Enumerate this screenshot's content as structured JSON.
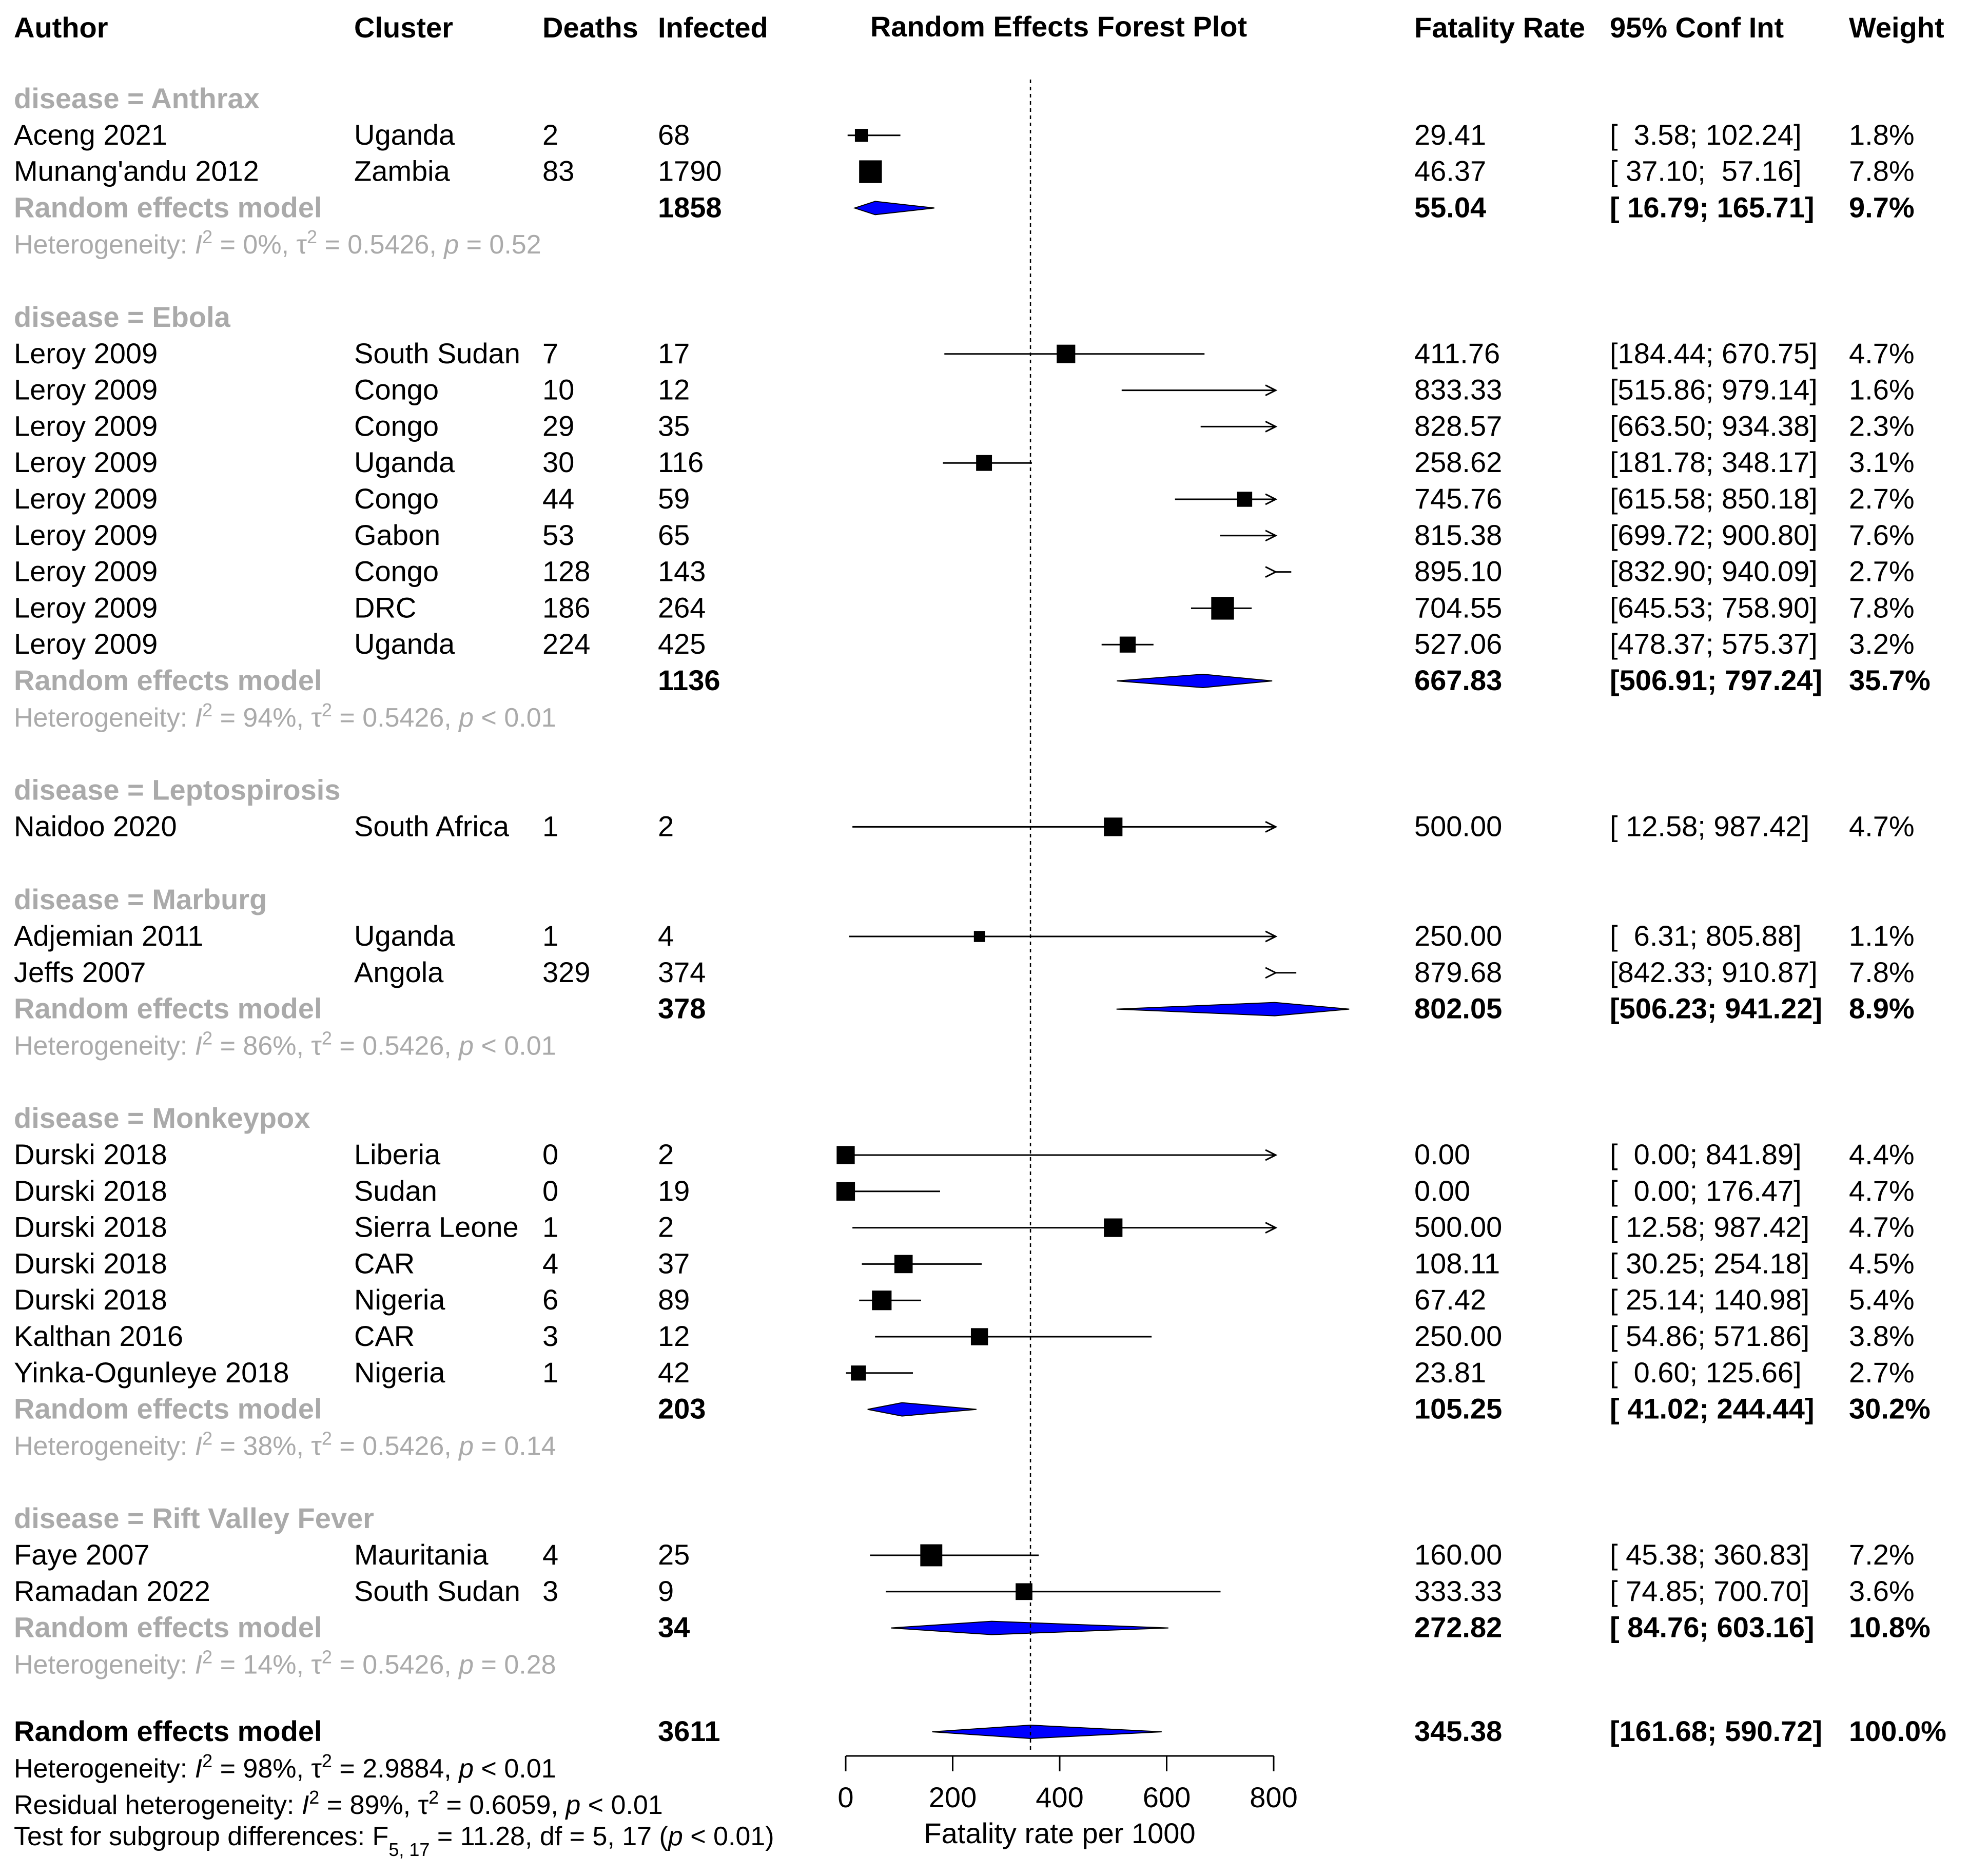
{
  "headers": {
    "author": "Author",
    "cluster": "Cluster",
    "deaths": "Deaths",
    "infected": "Infected",
    "plot_title": "Random Effects Forest Plot",
    "rate": "Fatality Rate",
    "ci": "95% Conf Int",
    "weight": "Weight"
  },
  "chart_data": {
    "type": "forest",
    "title": "Random Effects Forest Plot",
    "xlabel": "Fatality rate per 1000",
    "xlim": [
      0,
      800
    ],
    "xticks": [
      "0",
      "200",
      "400",
      "600",
      "800"
    ],
    "reference_line": 345.38,
    "groups": [
      {
        "label": "disease = Anthrax",
        "studies": [
          {
            "author": "Aceng 2021",
            "cluster": "Uganda",
            "deaths": "2",
            "infected": "68",
            "rate": "29.41",
            "ci": "[  3.58; 102.24]",
            "weight": "1.8%",
            "est": 29.41,
            "lo": 3.58,
            "hi": 102.24,
            "w": 1.8
          },
          {
            "author": "Munang'andu 2012",
            "cluster": "Zambia",
            "deaths": "83",
            "infected": "1790",
            "rate": "46.37",
            "ci": "[ 37.10;  57.16]",
            "weight": "7.8%",
            "est": 46.37,
            "lo": 37.1,
            "hi": 57.16,
            "w": 7.8
          }
        ],
        "summary": {
          "label": "Random effects model",
          "infected": "1858",
          "rate": "55.04",
          "ci": "[ 16.79; 165.71]",
          "weight": "9.7%",
          "est": 55.04,
          "lo": 16.79,
          "hi": 165.71
        },
        "heterogeneity": {
          "prefix": "Heterogeneity: ",
          "i2": "0%",
          "tau2": "0.5426",
          "p": "= 0.52"
        }
      },
      {
        "label": "disease = Ebola",
        "studies": [
          {
            "author": "Leroy 2009",
            "cluster": "South Sudan",
            "deaths": "7",
            "infected": "17",
            "rate": "411.76",
            "ci": "[184.44; 670.75]",
            "weight": "4.7%",
            "est": 411.76,
            "lo": 184.44,
            "hi": 670.75,
            "w": 4.7
          },
          {
            "author": "Leroy 2009",
            "cluster": "Congo",
            "deaths": "10",
            "infected": "12",
            "rate": "833.33",
            "ci": "[515.86; 979.14]",
            "weight": "1.6%",
            "est": 833.33,
            "lo": 515.86,
            "hi": 979.14,
            "w": 1.6
          },
          {
            "author": "Leroy 2009",
            "cluster": "Congo",
            "deaths": "29",
            "infected": "35",
            "rate": "828.57",
            "ci": "[663.50; 934.38]",
            "weight": "2.3%",
            "est": 828.57,
            "lo": 663.5,
            "hi": 934.38,
            "w": 2.3
          },
          {
            "author": "Leroy 2009",
            "cluster": "Uganda",
            "deaths": "30",
            "infected": "116",
            "rate": "258.62",
            "ci": "[181.78; 348.17]",
            "weight": "3.1%",
            "est": 258.62,
            "lo": 181.78,
            "hi": 348.17,
            "w": 3.1
          },
          {
            "author": "Leroy 2009",
            "cluster": "Congo",
            "deaths": "44",
            "infected": "59",
            "rate": "745.76",
            "ci": "[615.58; 850.18]",
            "weight": "2.7%",
            "est": 745.76,
            "lo": 615.58,
            "hi": 850.18,
            "w": 2.7
          },
          {
            "author": "Leroy 2009",
            "cluster": "Gabon",
            "deaths": "53",
            "infected": "65",
            "rate": "815.38",
            "ci": "[699.72; 900.80]",
            "weight": "7.6%",
            "est": 815.38,
            "lo": 699.72,
            "hi": 900.8,
            "w": 7.6
          },
          {
            "author": "Leroy 2009",
            "cluster": "Congo",
            "deaths": "128",
            "infected": "143",
            "rate": "895.10",
            "ci": "[832.90; 940.09]",
            "weight": "2.7%",
            "est": 895.1,
            "lo": 832.9,
            "hi": 940.09,
            "w": 2.7
          },
          {
            "author": "Leroy 2009",
            "cluster": "DRC",
            "deaths": "186",
            "infected": "264",
            "rate": "704.55",
            "ci": "[645.53; 758.90]",
            "weight": "7.8%",
            "est": 704.55,
            "lo": 645.53,
            "hi": 758.9,
            "w": 7.8
          },
          {
            "author": "Leroy 2009",
            "cluster": "Uganda",
            "deaths": "224",
            "infected": "425",
            "rate": "527.06",
            "ci": "[478.37; 575.37]",
            "weight": "3.2%",
            "est": 527.06,
            "lo": 478.37,
            "hi": 575.37,
            "w": 3.2
          }
        ],
        "summary": {
          "label": "Random effects model",
          "infected": "1136",
          "rate": "667.83",
          "ci": "[506.91; 797.24]",
          "weight": "35.7%",
          "est": 667.83,
          "lo": 506.91,
          "hi": 797.24
        },
        "heterogeneity": {
          "prefix": "Heterogeneity: ",
          "i2": "94%",
          "tau2": "0.5426",
          "p": "< 0.01"
        }
      },
      {
        "label": "disease = Leptospirosis",
        "studies": [
          {
            "author": "Naidoo 2020",
            "cluster": "South Africa",
            "deaths": "1",
            "infected": "2",
            "rate": "500.00",
            "ci": "[ 12.58; 987.42]",
            "weight": "4.7%",
            "est": 500.0,
            "lo": 12.58,
            "hi": 987.42,
            "w": 4.7
          }
        ],
        "summary": null,
        "heterogeneity": null
      },
      {
        "label": "disease = Marburg",
        "studies": [
          {
            "author": "Adjemian 2011",
            "cluster": "Uganda",
            "deaths": "1",
            "infected": "4",
            "rate": "250.00",
            "ci": "[  6.31; 805.88]",
            "weight": "1.1%",
            "est": 250.0,
            "lo": 6.31,
            "hi": 805.88,
            "w": 1.1
          },
          {
            "author": "Jeffs 2007",
            "cluster": "Angola",
            "deaths": "329",
            "infected": "374",
            "rate": "879.68",
            "ci": "[842.33; 910.87]",
            "weight": "7.8%",
            "est": 879.68,
            "lo": 842.33,
            "hi": 910.87,
            "w": 7.8
          }
        ],
        "summary": {
          "label": "Random effects model",
          "infected": "378",
          "rate": "802.05",
          "ci": "[506.23; 941.22]",
          "weight": "8.9%",
          "est": 802.05,
          "lo": 506.23,
          "hi": 941.22
        },
        "heterogeneity": {
          "prefix": "Heterogeneity: ",
          "i2": "86%",
          "tau2": "0.5426",
          "p": "< 0.01"
        }
      },
      {
        "label": "disease = Monkeypox",
        "studies": [
          {
            "author": "Durski 2018",
            "cluster": "Liberia",
            "deaths": "0",
            "infected": "2",
            "rate": "0.00",
            "ci": "[  0.00; 841.89]",
            "weight": "4.4%",
            "est": 0.0,
            "lo": 0.0,
            "hi": 841.89,
            "w": 4.4
          },
          {
            "author": "Durski 2018",
            "cluster": "Sudan",
            "deaths": "0",
            "infected": "19",
            "rate": "0.00",
            "ci": "[  0.00; 176.47]",
            "weight": "4.7%",
            "est": 0.0,
            "lo": 0.0,
            "hi": 176.47,
            "w": 4.7
          },
          {
            "author": "Durski 2018",
            "cluster": "Sierra Leone",
            "deaths": "1",
            "infected": "2",
            "rate": "500.00",
            "ci": "[ 12.58; 987.42]",
            "weight": "4.7%",
            "est": 500.0,
            "lo": 12.58,
            "hi": 987.42,
            "w": 4.7
          },
          {
            "author": "Durski 2018",
            "cluster": "CAR",
            "deaths": "4",
            "infected": "37",
            "rate": "108.11",
            "ci": "[ 30.25; 254.18]",
            "weight": "4.5%",
            "est": 108.11,
            "lo": 30.25,
            "hi": 254.18,
            "w": 4.5
          },
          {
            "author": "Durski 2018",
            "cluster": "Nigeria",
            "deaths": "6",
            "infected": "89",
            "rate": "67.42",
            "ci": "[ 25.14; 140.98]",
            "weight": "5.4%",
            "est": 67.42,
            "lo": 25.14,
            "hi": 140.98,
            "w": 5.4
          },
          {
            "author": "Kalthan 2016",
            "cluster": "CAR",
            "deaths": "3",
            "infected": "12",
            "rate": "250.00",
            "ci": "[ 54.86; 571.86]",
            "weight": "3.8%",
            "est": 250.0,
            "lo": 54.86,
            "hi": 571.86,
            "w": 3.8
          },
          {
            "author": "Yinka-Ogunleye 2018",
            "cluster": "Nigeria",
            "deaths": "1",
            "infected": "42",
            "rate": "23.81",
            "ci": "[  0.60; 125.66]",
            "weight": "2.7%",
            "est": 23.81,
            "lo": 0.6,
            "hi": 125.66,
            "w": 2.7
          }
        ],
        "summary": {
          "label": "Random effects model",
          "infected": "203",
          "rate": "105.25",
          "ci": "[ 41.02; 244.44]",
          "weight": "30.2%",
          "est": 105.25,
          "lo": 41.02,
          "hi": 244.44
        },
        "heterogeneity": {
          "prefix": "Heterogeneity: ",
          "i2": "38%",
          "tau2": "0.5426",
          "p": "= 0.14"
        }
      },
      {
        "label": "disease = Rift Valley Fever",
        "studies": [
          {
            "author": "Faye 2007",
            "cluster": "Mauritania",
            "deaths": "4",
            "infected": "25",
            "rate": "160.00",
            "ci": "[ 45.38; 360.83]",
            "weight": "7.2%",
            "est": 160.0,
            "lo": 45.38,
            "hi": 360.83,
            "w": 7.2
          },
          {
            "author": "Ramadan 2022",
            "cluster": "South Sudan",
            "deaths": "3",
            "infected": "9",
            "rate": "333.33",
            "ci": "[ 74.85; 700.70]",
            "weight": "3.6%",
            "est": 333.33,
            "lo": 74.85,
            "hi": 700.7,
            "w": 3.6
          }
        ],
        "summary": {
          "label": "Random effects model",
          "infected": "34",
          "rate": "272.82",
          "ci": "[ 84.76; 603.16]",
          "weight": "10.8%",
          "est": 272.82,
          "lo": 84.76,
          "hi": 603.16
        },
        "heterogeneity": {
          "prefix": "Heterogeneity: ",
          "i2": "14%",
          "tau2": "0.5426",
          "p": "= 0.28"
        }
      }
    ],
    "overall": {
      "label": "Random effects model",
      "infected": "3611",
      "rate": "345.38",
      "ci": "[161.68; 590.72]",
      "weight": "100.0%",
      "est": 345.38,
      "lo": 161.68,
      "hi": 590.72
    },
    "overall_heterogeneity": {
      "prefix": "Heterogeneity: ",
      "i2": "98%",
      "tau2": "2.9884",
      "p": "< 0.01"
    },
    "residual_heterogeneity": {
      "prefix": "Residual heterogeneity: ",
      "i2": "89%",
      "tau2": "0.6059",
      "p": "< 0.01"
    },
    "subgroup_test": {
      "prefix": "Test for subgroup differences: F",
      "sub": "5, 17",
      "text": " = 11.28, df = 5, 17 (",
      "p_symbol": "p",
      "p_text": " < 0.01)"
    }
  },
  "colors": {
    "diamond": "#0000ff",
    "grey_text": "#aaaaaa",
    "line": "#000000"
  }
}
